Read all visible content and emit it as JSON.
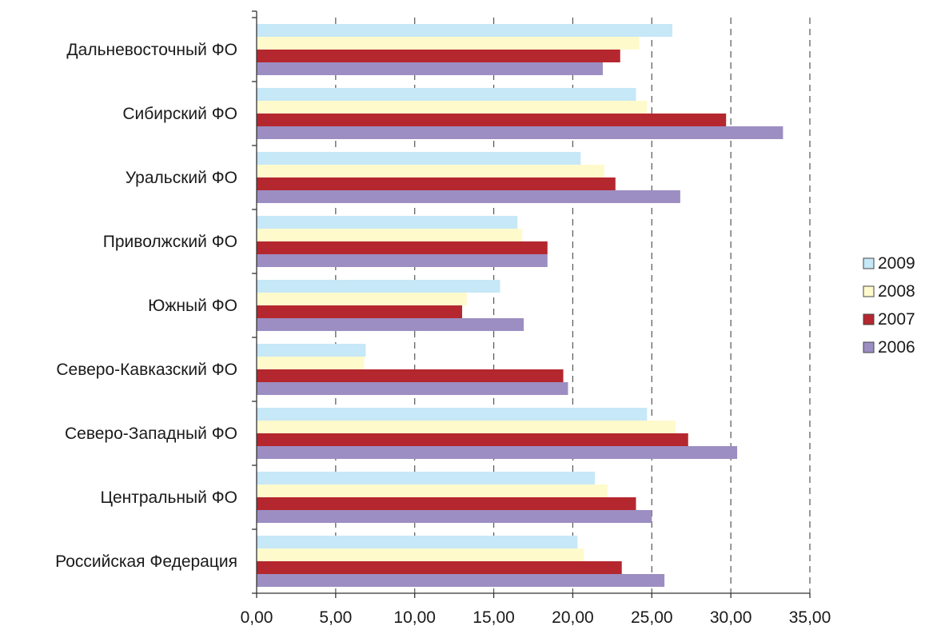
{
  "chart_data": {
    "type": "bar",
    "orientation": "horizontal",
    "title": "",
    "xlabel": "",
    "ylabel": "",
    "xlim": [
      0,
      35
    ],
    "x_ticks": [
      0,
      5,
      10,
      15,
      20,
      25,
      30,
      35
    ],
    "x_tick_labels": [
      "0,00",
      "5,00",
      "10,00",
      "15,00",
      "20,00",
      "25,00",
      "30,00",
      "35,00"
    ],
    "grid": "vertical dashed",
    "legend_position": "right",
    "categories": [
      "Дальневосточный ФО",
      "Сибирский ФО",
      "Уральский ФО",
      "Приволжский ФО",
      "Южный ФО",
      "Северо-Кавказский ФО",
      "Северо-Западный ФО",
      "Центральный ФО",
      "Российская Федерация"
    ],
    "series": [
      {
        "name": "2009",
        "color": "#c6e8f7",
        "values": [
          26.3,
          24.0,
          20.5,
          16.5,
          15.4,
          6.9,
          24.7,
          21.4,
          20.3
        ]
      },
      {
        "name": "2008",
        "color": "#fffacc",
        "values": [
          24.2,
          24.7,
          22.0,
          16.8,
          13.3,
          6.8,
          26.5,
          22.2,
          20.7
        ]
      },
      {
        "name": "2007",
        "color": "#b5272e",
        "values": [
          23.0,
          29.7,
          22.7,
          18.4,
          13.0,
          19.4,
          27.3,
          24.0,
          23.1
        ]
      },
      {
        "name": "2006",
        "color": "#9c8ec2",
        "values": [
          21.9,
          33.3,
          26.8,
          18.4,
          16.9,
          19.7,
          30.4,
          25.0,
          25.8
        ]
      }
    ]
  }
}
